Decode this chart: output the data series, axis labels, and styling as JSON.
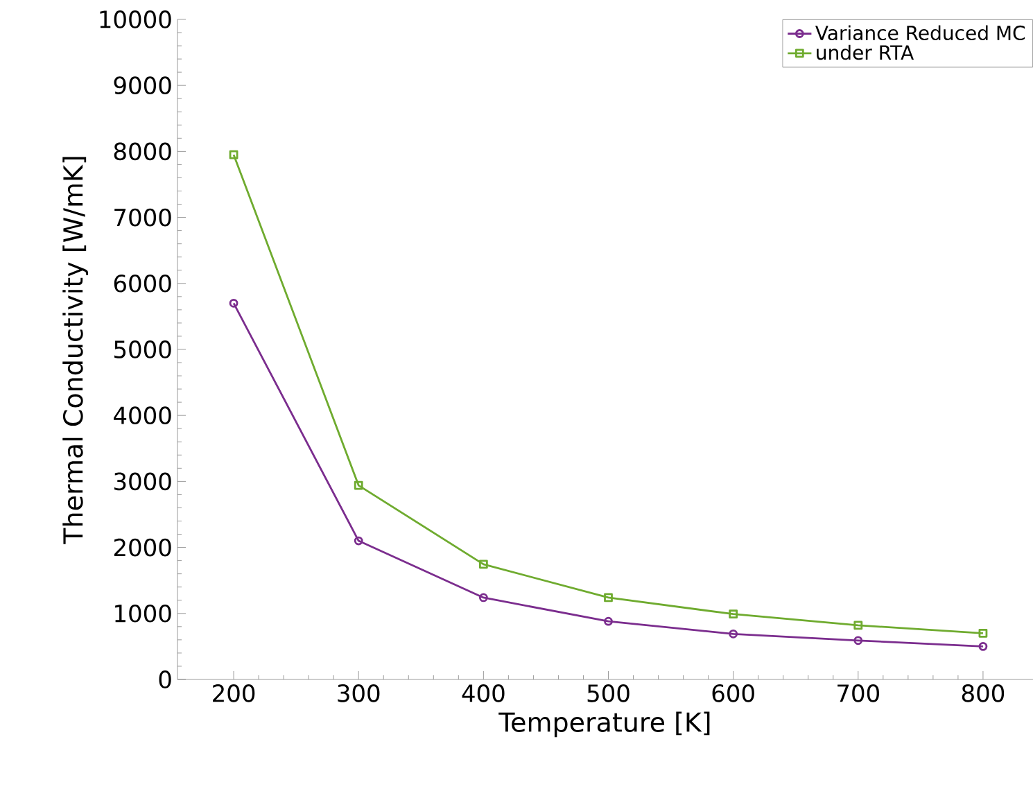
{
  "chart_data": {
    "type": "line",
    "xlabel": "Temperature [K]",
    "ylabel": "Thermal Conductivity [W/mK]",
    "x": [
      200,
      300,
      400,
      500,
      600,
      700,
      800
    ],
    "series": [
      {
        "name": "Variance Reduced MC",
        "color": "#7b2d8e",
        "marker": "circle",
        "values": [
          5700,
          2100,
          1240,
          880,
          690,
          590,
          500
        ]
      },
      {
        "name": "under RTA",
        "color": "#6fab2f",
        "marker": "square",
        "values": [
          7950,
          2940,
          1745,
          1240,
          990,
          820,
          700
        ]
      }
    ],
    "xlim": [
      155,
      840
    ],
    "ylim": [
      0,
      10000
    ],
    "xticks": [
      200,
      300,
      400,
      500,
      600,
      700,
      800
    ],
    "yticks": [
      0,
      1000,
      2000,
      3000,
      4000,
      5000,
      6000,
      7000,
      8000,
      9000,
      10000
    ],
    "grid": false,
    "legend": "top right"
  }
}
